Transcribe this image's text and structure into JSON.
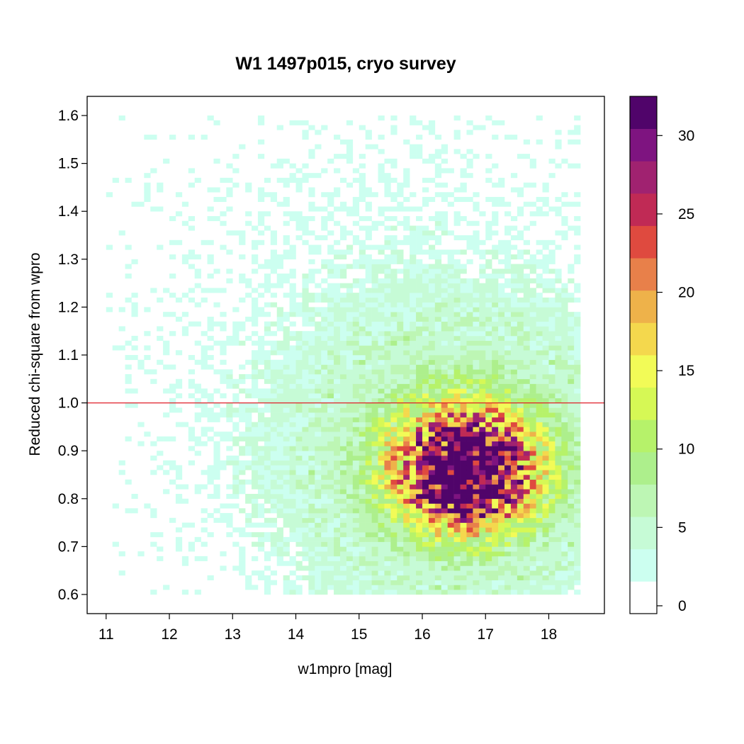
{
  "chart_data": {
    "type": "heatmap",
    "title": "W1 1497p015, cryo survey",
    "xlabel": "w1mpro [mag]",
    "ylabel": "Reduced chi-square from wpro",
    "xlim": [
      10.7,
      18.88
    ],
    "ylim": [
      0.56,
      1.64
    ],
    "x_ticks": [
      11,
      12,
      13,
      14,
      15,
      16,
      17,
      18
    ],
    "y_ticks": [
      0.6,
      0.7,
      0.8,
      0.9,
      1.0,
      1.1,
      1.2,
      1.3,
      1.4,
      1.5,
      1.6
    ],
    "x_tick_labels": [
      "11",
      "12",
      "13",
      "14",
      "15",
      "16",
      "17",
      "18"
    ],
    "y_tick_labels": [
      "0.6",
      "0.7",
      "0.8",
      "0.9",
      "1.0",
      "1.1",
      "1.2",
      "1.3",
      "1.4",
      "1.5",
      "1.6"
    ],
    "reference_line": {
      "y": 1.0,
      "color": "#e0202a"
    },
    "bin_size": {
      "x": 0.1,
      "y": 0.01
    },
    "density_peak": {
      "x": 16.7,
      "y": 0.86,
      "count": 32
    },
    "colorbar": {
      "min": 0,
      "max": 32.5,
      "ticks": [
        0,
        5,
        10,
        15,
        20,
        25,
        30
      ],
      "tick_labels": [
        "0",
        "5",
        "10",
        "15",
        "20",
        "25",
        "30"
      ],
      "colors": [
        "#ffffff",
        "#ccfff0",
        "#c6fbd6",
        "#bdf6b4",
        "#adef8c",
        "#b6f26a",
        "#d6f855",
        "#f2fb57",
        "#f4d84d",
        "#eeb24a",
        "#e8804a",
        "#df4a3f",
        "#c02a55",
        "#a02270",
        "#7e1480",
        "#50046a"
      ]
    },
    "grid": false
  }
}
